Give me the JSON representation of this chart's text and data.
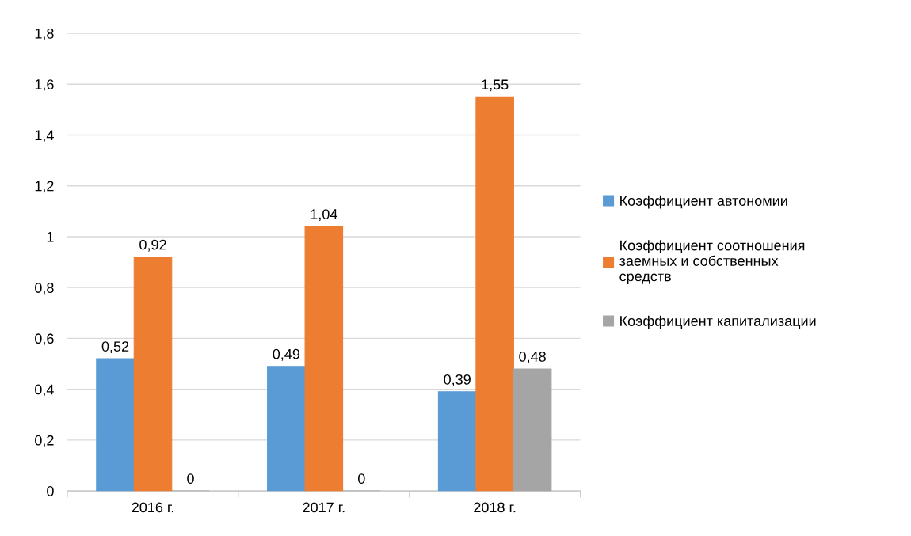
{
  "chart_data": {
    "type": "bar",
    "categories": [
      "2016 г.",
      "2017 г.",
      "2018 г."
    ],
    "series": [
      {
        "name": "Коэффициент автономии",
        "color": "#5b9bd5",
        "values": [
          0.52,
          0.49,
          0.39
        ],
        "value_labels": [
          "0,52",
          "0,49",
          "0,39"
        ]
      },
      {
        "name": "Коэффициент соотношения\nзаемных и собственных\nсредств",
        "color": "#ed7d31",
        "values": [
          0.92,
          1.04,
          1.55
        ],
        "value_labels": [
          "0,92",
          "1,04",
          "1,55"
        ]
      },
      {
        "name": "Коэффициент капитализации",
        "color": "#a5a5a5",
        "values": [
          0,
          0,
          0.48
        ],
        "value_labels": [
          "0",
          "0",
          "0,48"
        ]
      }
    ],
    "ylim": [
      0,
      1.8
    ],
    "yticks": [
      0,
      {
        "value": 0.2,
        "label": "0,2"
      },
      {
        "value": 0.4,
        "label": "0,4"
      },
      {
        "value": 0.6,
        "label": "0,6"
      },
      {
        "value": 0.8,
        "label": "0,8"
      },
      1,
      {
        "value": 1.2,
        "label": "1,2"
      },
      {
        "value": 1.4,
        "label": "1,4"
      },
      {
        "value": 1.6,
        "label": "1,6"
      },
      {
        "value": 1.8,
        "label": "1,8"
      }
    ],
    "grid": "y",
    "legend": "right"
  }
}
